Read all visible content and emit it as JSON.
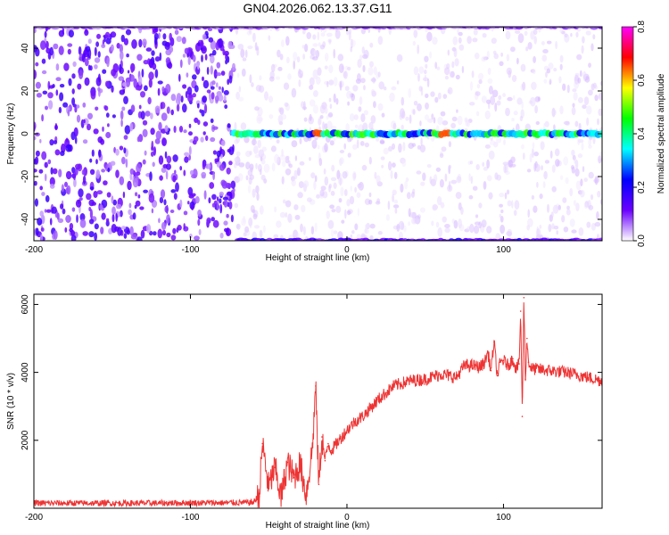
{
  "title": "GN04.2026.062.13.37.G11",
  "chart_data": [
    {
      "type": "heatmap",
      "xlabel": "Height of straight line (km)",
      "ylabel": "Frequency (Hz)",
      "xlim": [
        -200,
        163
      ],
      "ylim": [
        -50,
        50
      ],
      "x_ticks": [
        -200,
        -100,
        0,
        100
      ],
      "y_ticks": [
        -40,
        -20,
        0,
        20,
        40
      ],
      "colorbar": {
        "label": "Normalized spectral amplitude",
        "range": [
          0.0,
          0.8
        ],
        "ticks": [
          0.0,
          0.2,
          0.4,
          0.6,
          0.8
        ],
        "colors": [
          "#ffffff",
          "#6a00ff",
          "#0000ff",
          "#00ffff",
          "#00ff00",
          "#ffff00",
          "#ff0000",
          "#ff00ff"
        ]
      },
      "features": [
        {
          "kind": "noise",
          "x_range": [
            -200,
            -72
          ],
          "amplitude": 0.1
        },
        {
          "kind": "noise",
          "x_range": [
            -72,
            163
          ],
          "amplitude": 0.02
        },
        {
          "kind": "signal_line",
          "frequency": 0,
          "x_range": [
            -72,
            163
          ],
          "amplitude": 0.35,
          "peak_x": [
            -18,
            62
          ],
          "peak_amplitude": 0.65
        },
        {
          "kind": "edge_line",
          "frequency": -50,
          "x_range": [
            -70,
            163
          ],
          "amplitude": 0.15
        },
        {
          "kind": "edge_line",
          "frequency": 50,
          "x_range": [
            -200,
            163
          ],
          "amplitude": 0.08
        }
      ],
      "grid": false
    },
    {
      "type": "line",
      "xlabel": "Height of straight line (km)",
      "ylabel": "SNR (10 * v/v)",
      "xlim": [
        -200,
        163
      ],
      "ylim": [
        0,
        6300
      ],
      "x_ticks": [
        -200,
        -100,
        0,
        100
      ],
      "y_ticks": [
        2000,
        4000,
        6000
      ],
      "grid": false,
      "series": [
        {
          "color": "#ee3333",
          "x": [
            -200,
            -180,
            -160,
            -140,
            -120,
            -100,
            -80,
            -60,
            -56,
            -54,
            -50,
            -46,
            -42,
            -38,
            -34,
            -30,
            -26,
            -22,
            -20,
            -18,
            -16,
            -14,
            -12,
            -10,
            -5,
            0,
            5,
            10,
            15,
            20,
            25,
            30,
            40,
            50,
            60,
            70,
            72,
            75,
            80,
            85,
            88,
            90,
            92,
            94,
            96,
            98,
            100,
            103,
            106,
            108,
            110,
            111,
            112,
            113,
            114,
            115,
            116,
            118,
            120,
            130,
            140,
            150,
            163
          ],
          "y": [
            150,
            150,
            150,
            150,
            150,
            160,
            160,
            170,
            350,
            1900,
            600,
            1200,
            300,
            1350,
            900,
            1300,
            400,
            1800,
            3600,
            700,
            2100,
            1400,
            1900,
            1700,
            2000,
            2300,
            2550,
            2700,
            2950,
            3200,
            3400,
            3600,
            3750,
            3800,
            3950,
            3850,
            4000,
            4200,
            4200,
            4150,
            4300,
            4600,
            4050,
            4900,
            3900,
            4300,
            4350,
            4200,
            4400,
            4100,
            4250,
            5800,
            2700,
            6200,
            3800,
            5000,
            4300,
            4100,
            4100,
            4050,
            4000,
            3900,
            3750
          ]
        }
      ]
    }
  ]
}
